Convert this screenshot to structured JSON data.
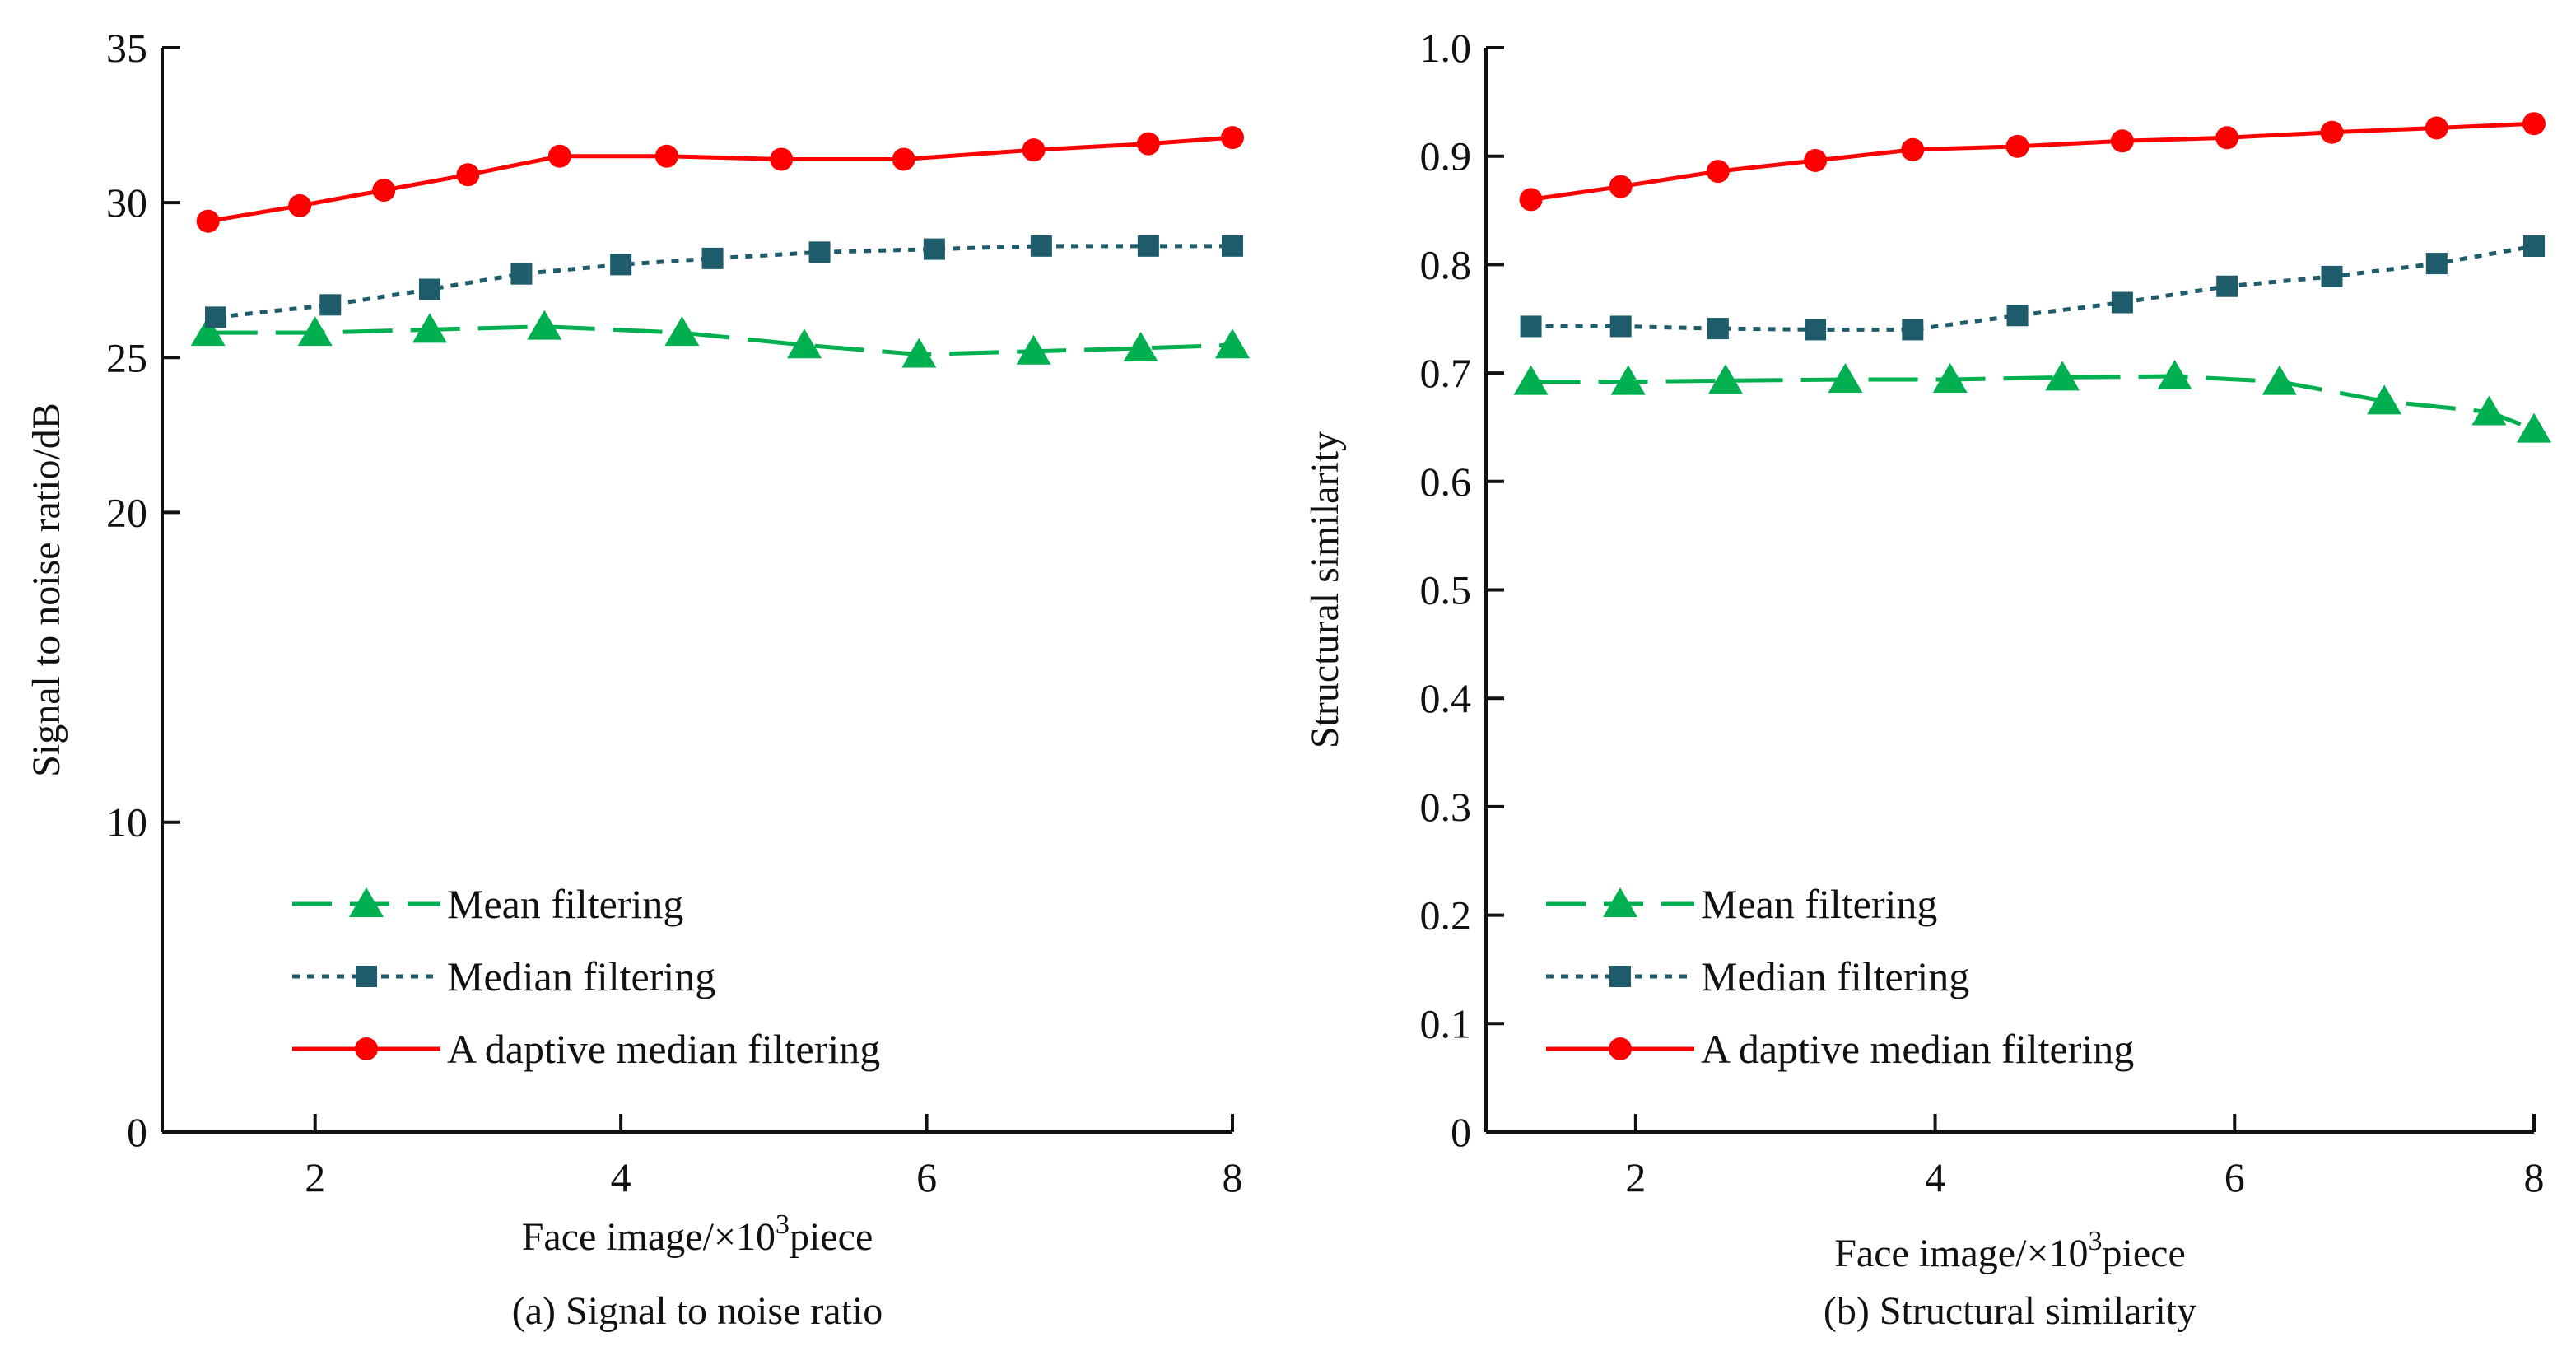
{
  "colors": {
    "mean": "#00b050",
    "median": "#1f5c6b",
    "adaptive": "#ff0000",
    "axis": "#111111"
  },
  "chart_data": [
    {
      "id": "a",
      "type": "line",
      "caption": "(a) Signal to noise ratio",
      "xlabel": "Face image/×10",
      "xlabel_sup": "3",
      "xlabel_suffix": "piece",
      "ylabel": "Signal to noise ratio/dB",
      "xlim": [
        1.0,
        8.0
      ],
      "ylim": [
        0,
        35
      ],
      "xticks": [
        2,
        4,
        6,
        8
      ],
      "xtick_labels": [
        "2",
        "4",
        "6",
        "8"
      ],
      "yticks": [
        0,
        10,
        20,
        25,
        30,
        35
      ],
      "ytick_labels": [
        "0",
        "10",
        "20",
        "25",
        "30",
        "35"
      ],
      "legend": {
        "position": "lower-left",
        "entries": [
          "Mean filtering",
          "Median filtering",
          "A daptive median filtering"
        ]
      },
      "series": [
        {
          "name": "Mean filtering",
          "key": "mean",
          "marker": "triangle",
          "dash": "dashed",
          "x": [
            1.3,
            2.0,
            2.75,
            3.5,
            4.4,
            5.2,
            5.95,
            6.7,
            7.4,
            8.0
          ],
          "y": [
            25.8,
            25.8,
            25.9,
            26.0,
            25.8,
            25.4,
            25.1,
            25.2,
            25.3,
            25.4
          ]
        },
        {
          "name": "Median filtering",
          "key": "median",
          "marker": "square",
          "dash": "dotted",
          "x": [
            1.35,
            2.1,
            2.75,
            3.35,
            4.0,
            4.6,
            5.3,
            6.05,
            6.75,
            7.45,
            8.0
          ],
          "y": [
            26.3,
            26.7,
            27.2,
            27.7,
            28.0,
            28.2,
            28.4,
            28.5,
            28.6,
            28.6,
            28.6
          ]
        },
        {
          "name": "A daptive median filtering",
          "key": "adaptive",
          "marker": "circle",
          "dash": "solid",
          "x": [
            1.3,
            1.9,
            2.45,
            3.0,
            3.6,
            4.3,
            5.05,
            5.85,
            6.7,
            7.45,
            8.0
          ],
          "y": [
            29.4,
            29.9,
            30.4,
            30.9,
            31.5,
            31.5,
            31.4,
            31.4,
            31.7,
            31.9,
            32.1
          ]
        }
      ]
    },
    {
      "id": "b",
      "type": "line",
      "caption": "(b) Structural similarity",
      "xlabel": "Face image/×10",
      "xlabel_sup": "3",
      "xlabel_suffix": "piece",
      "ylabel": "Structural similarity",
      "xlim": [
        1.0,
        8.0
      ],
      "ylim": [
        0,
        1.0
      ],
      "xticks": [
        2,
        4,
        6,
        8
      ],
      "xtick_labels": [
        "2",
        "4",
        "6",
        "8"
      ],
      "yticks": [
        0,
        0.1,
        0.2,
        0.3,
        0.4,
        0.5,
        0.6,
        0.7,
        0.8,
        0.9,
        1.0
      ],
      "ytick_labels": [
        "0",
        "0.1",
        "0.2",
        "0.3",
        "0.4",
        "0.5",
        "0.6",
        "0.7",
        "0.8",
        "0.9",
        "1.0"
      ],
      "legend": {
        "position": "lower-left",
        "entries": [
          "Mean filtering",
          "Median filtering",
          "A daptive median filtering"
        ]
      },
      "series": [
        {
          "name": "Mean filtering",
          "key": "mean",
          "marker": "triangle",
          "dash": "dashed",
          "x": [
            1.3,
            1.95,
            2.6,
            3.4,
            4.1,
            4.85,
            5.6,
            6.3,
            7.0,
            7.7,
            8.0
          ],
          "y": [
            0.692,
            0.692,
            0.693,
            0.694,
            0.694,
            0.696,
            0.697,
            0.692,
            0.674,
            0.664,
            0.648
          ]
        },
        {
          "name": "Median filtering",
          "key": "median",
          "marker": "square",
          "dash": "dotted",
          "x": [
            1.3,
            1.9,
            2.55,
            3.2,
            3.85,
            4.55,
            5.25,
            5.95,
            6.65,
            7.35,
            8.0
          ],
          "y": [
            0.743,
            0.743,
            0.741,
            0.74,
            0.74,
            0.753,
            0.765,
            0.78,
            0.789,
            0.801,
            0.817
          ]
        },
        {
          "name": "A daptive median filtering",
          "key": "adaptive",
          "marker": "circle",
          "dash": "solid",
          "x": [
            1.3,
            1.9,
            2.55,
            3.2,
            3.85,
            4.55,
            5.25,
            5.95,
            6.65,
            7.35,
            8.0
          ],
          "y": [
            0.86,
            0.872,
            0.886,
            0.896,
            0.906,
            0.909,
            0.914,
            0.917,
            0.922,
            0.926,
            0.93
          ]
        }
      ]
    }
  ]
}
